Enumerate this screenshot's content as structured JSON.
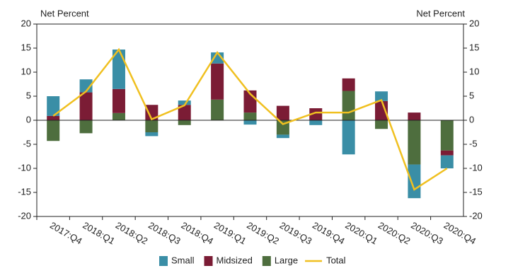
{
  "chart_data": {
    "type": "stacked-bar-line",
    "y_title": "Net Percent",
    "y2_title": "Net Percent",
    "categories": [
      "2017:Q4",
      "2018:Q1",
      "2018:Q2",
      "2018:Q3",
      "2018:Q4",
      "2019:Q1",
      "2019:Q2",
      "2019:Q3",
      "2019:Q4",
      "2020:Q1",
      "2020:Q2",
      "2020:Q3",
      "2020:Q4"
    ],
    "series": [
      {
        "name": "Small",
        "color": "#3a8ea6",
        "values": [
          4.1,
          2.7,
          8.2,
          -0.8,
          0.9,
          2.3,
          -0.9,
          -0.7,
          -1.0,
          -7.1,
          2.0,
          -7.0,
          -2.7
        ]
      },
      {
        "name": "Midsized",
        "color": "#7b1c35",
        "values": [
          0.9,
          5.8,
          5.0,
          3.2,
          3.2,
          7.5,
          4.6,
          3.0,
          2.5,
          2.6,
          4.0,
          1.6,
          -1.0
        ]
      },
      {
        "name": "Large",
        "color": "#4e6e3e",
        "values": [
          -4.3,
          -2.7,
          1.5,
          -2.5,
          -1.0,
          4.3,
          1.6,
          -3.0,
          0,
          6.1,
          -1.8,
          -9.2,
          -6.3
        ]
      },
      {
        "name": "Total",
        "color": "#f0c020",
        "line": true,
        "values": [
          0.9,
          6.0,
          14.7,
          0.2,
          3.1,
          14.1,
          5.5,
          -0.8,
          1.6,
          1.6,
          4.2,
          -14.4,
          -10.0
        ]
      }
    ],
    "ylim": [
      -20,
      20
    ],
    "yticks": [
      -20,
      -15,
      -10,
      -5,
      0,
      5,
      10,
      15,
      20
    ],
    "y2lim": [
      -20,
      20
    ],
    "y2ticks": [
      -20,
      -15,
      -10,
      -5,
      0,
      5,
      10,
      15,
      20
    ]
  }
}
